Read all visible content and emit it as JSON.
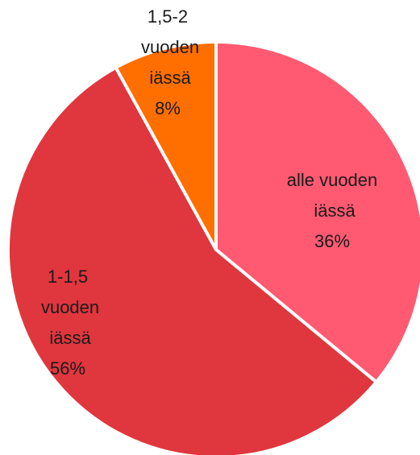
{
  "chart_data": {
    "type": "pie",
    "categories": [
      "alle vuoden iässä",
      "1-1,5 vuoden iässä",
      "1,5-2 vuoden iässä"
    ],
    "values": [
      36,
      56,
      8
    ],
    "value_labels": [
      "36%",
      "56%",
      "8%"
    ],
    "colors": [
      "#ff5a72",
      "#e0363e",
      "#ff6f00"
    ]
  }
}
